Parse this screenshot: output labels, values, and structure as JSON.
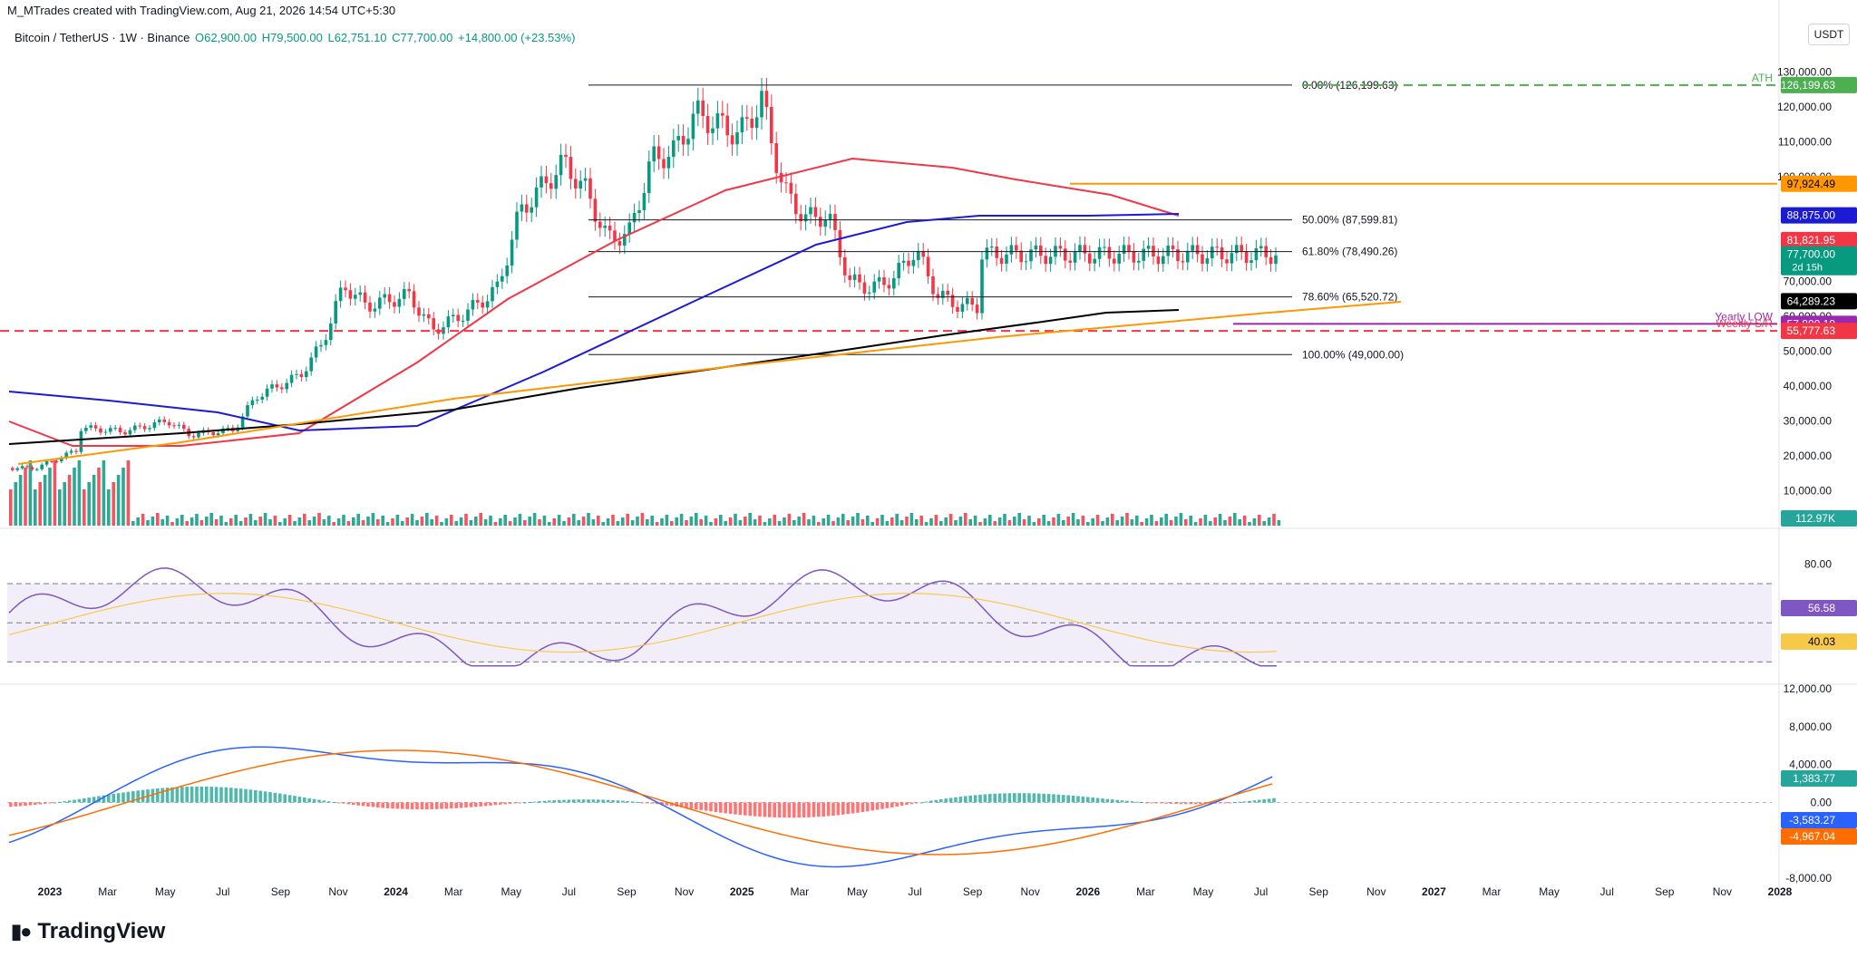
{
  "header": {
    "author_line": "M_MTrades created with TradingView.com, Aug 21, 2026 14:54 UTC+5:30",
    "symbol_line": "Bitcoin / TetherUS · 1W · Binance",
    "ohlc": {
      "o": "O62,900.00",
      "h": "H79,500.00",
      "l": "L62,751.10",
      "c": "C77,700.00",
      "chg": "+14,800.00 (+23.53%)"
    },
    "currency": "USDT"
  },
  "footer": {
    "brand": "TradingView",
    "brand_icon": "tradingview-logo-icon"
  },
  "colors": {
    "up": "#089981",
    "down": "#f23645",
    "ma50": "#f23645",
    "ma100": "#1b1bd6",
    "ma200": "#000000",
    "trend": "#ff9800",
    "rsi": "#7e57c2",
    "rsi_ma": "#f7c948",
    "macd": "#2962ff",
    "signal": "#ff6d00"
  },
  "chart_data": [
    {
      "type": "candlestick",
      "title": "Bitcoin / TetherUS · 1W · Binance",
      "x_ticks": [
        "2023",
        "Mar",
        "May",
        "Jul",
        "Sep",
        "Nov",
        "2024",
        "Mar",
        "May",
        "Jul",
        "Sep",
        "Nov",
        "2025",
        "Mar",
        "May",
        "Jul",
        "Sep",
        "Nov",
        "2026",
        "Mar",
        "May",
        "Jul",
        "Sep",
        "Nov",
        "2027",
        "Mar",
        "May",
        "Jul",
        "Sep",
        "Nov",
        "2028"
      ],
      "y_ticks": [
        "130,000.00",
        "120,000.00",
        "110,000.00",
        "100,000.00",
        "90,000.00",
        "80,000.00",
        "70,000.00",
        "60,000.00",
        "50,000.00",
        "40,000.00",
        "30,000.00",
        "20,000.00",
        "10,000.00"
      ],
      "ylim": [
        0,
        135000
      ],
      "price_path": [
        [
          "2023-01",
          16500
        ],
        [
          "2023-03",
          22000
        ],
        [
          "2023-03",
          28000
        ],
        [
          "2023-05",
          27000
        ],
        [
          "2023-07",
          30000
        ],
        [
          "2023-08",
          26000
        ],
        [
          "2023-10",
          27500
        ],
        [
          "2023-11",
          37000
        ],
        [
          "2024-01",
          43000
        ],
        [
          "2024-02",
          52000
        ],
        [
          "2024-03",
          69000
        ],
        [
          "2024-04",
          63000
        ],
        [
          "2024-06",
          66000
        ],
        [
          "2024-07",
          56000
        ],
        [
          "2024-08",
          59000
        ],
        [
          "2024-09",
          63000
        ],
        [
          "2024-10",
          68000
        ],
        [
          "2024-11",
          90000
        ],
        [
          "2024-12",
          97000
        ],
        [
          "2025-01",
          104000
        ],
        [
          "2025-02",
          96000
        ],
        [
          "2025-03",
          82000
        ],
        [
          "2025-04",
          84000
        ],
        [
          "2025-05",
          105000
        ],
        [
          "2025-06",
          107000
        ],
        [
          "2025-07",
          118000
        ],
        [
          "2025-08",
          115000
        ],
        [
          "2025-09",
          112000
        ],
        [
          "2025-10",
          122000
        ],
        [
          "2025-11",
          96000
        ],
        [
          "2025-12",
          88000
        ],
        [
          "2026-01",
          89000
        ],
        [
          "2026-02",
          70000
        ],
        [
          "2026-03",
          68000
        ],
        [
          "2026-04",
          71000
        ],
        [
          "2026-05",
          79000
        ],
        [
          "2026-06",
          66000
        ],
        [
          "2026-07",
          63000
        ],
        [
          "2026-08",
          62900
        ],
        [
          "2026-08",
          77700
        ]
      ],
      "volume_label": "112.97K",
      "fib_levels": [
        {
          "label": "0.00% (126,199.63)",
          "value": 126199.63
        },
        {
          "label": "50.00% (87,599.81)",
          "value": 87599.81
        },
        {
          "label": "61.80% (78,490.26)",
          "value": 78490.26
        },
        {
          "label": "78.60% (65,520.72)",
          "value": 65520.72
        },
        {
          "label": "100.00% (49,000.00)",
          "value": 49000
        }
      ],
      "horizontal_lines": [
        {
          "label": "ATH",
          "value": 126199.63,
          "style": "dashed",
          "color": "#4caf50"
        },
        {
          "label": "",
          "value": 97924.49,
          "style": "solid",
          "color": "#ff9800"
        },
        {
          "label": "Yearly LOW",
          "value": 57800.19,
          "style": "solid",
          "color": "#9c27b0"
        },
        {
          "label": "Weekly S/R",
          "value": 55777.63,
          "style": "dashed",
          "color": "#f23645"
        }
      ],
      "price_tags": [
        {
          "text": "126,199.63",
          "value": 126199.63,
          "bg": "#4caf50",
          "fg": "#ffffff"
        },
        {
          "text": "97,924.49",
          "value": 97924.49,
          "bg": "#ff9800",
          "fg": "#000000"
        },
        {
          "text": "88,875.00",
          "value": 88875.0,
          "bg": "#1b1bd6",
          "fg": "#ffffff"
        },
        {
          "text": "81,821.95",
          "value": 81821.95,
          "bg": "#f23645",
          "fg": "#ffffff"
        },
        {
          "text": "77,700.00",
          "value": 77700.0,
          "bg": "#089981",
          "fg": "#ffffff",
          "sub": "2d 15h"
        },
        {
          "text": "64,289.23",
          "value": 64289.23,
          "bg": "#000000",
          "fg": "#ffffff"
        },
        {
          "text": "57,800.19",
          "value": 57800.19,
          "bg": "#9c27b0",
          "fg": "#ffffff"
        },
        {
          "text": "55,777.63",
          "value": 55777.63,
          "bg": "#f23645",
          "fg": "#ffffff"
        }
      ],
      "moving_averages": [
        {
          "color": "#f23645",
          "last": 81821.95
        },
        {
          "color": "#1b1bd6",
          "last": 88875.0
        },
        {
          "color": "#000000",
          "last": 64289.23
        }
      ]
    },
    {
      "type": "line",
      "y_ticks": [
        "80.00"
      ],
      "series": [
        {
          "color": "#7e57c2",
          "last": "56.58"
        },
        {
          "color": "#f7c948",
          "last": "40.03"
        }
      ],
      "bands": [
        70,
        50,
        30
      ],
      "ylim": [
        20,
        95
      ]
    },
    {
      "type": "bar",
      "y_ticks": [
        "12,000.00",
        "8,000.00",
        "4,000.00",
        "0.00",
        "-8,000.00"
      ],
      "ylim": [
        -10000,
        12000
      ],
      "tags": [
        {
          "text": "1,383.77",
          "bg": "#26a69a"
        },
        {
          "text": "-3,583.27",
          "bg": "#2962ff"
        },
        {
          "text": "-4,967.04",
          "bg": "#ff6d00"
        }
      ]
    }
  ]
}
